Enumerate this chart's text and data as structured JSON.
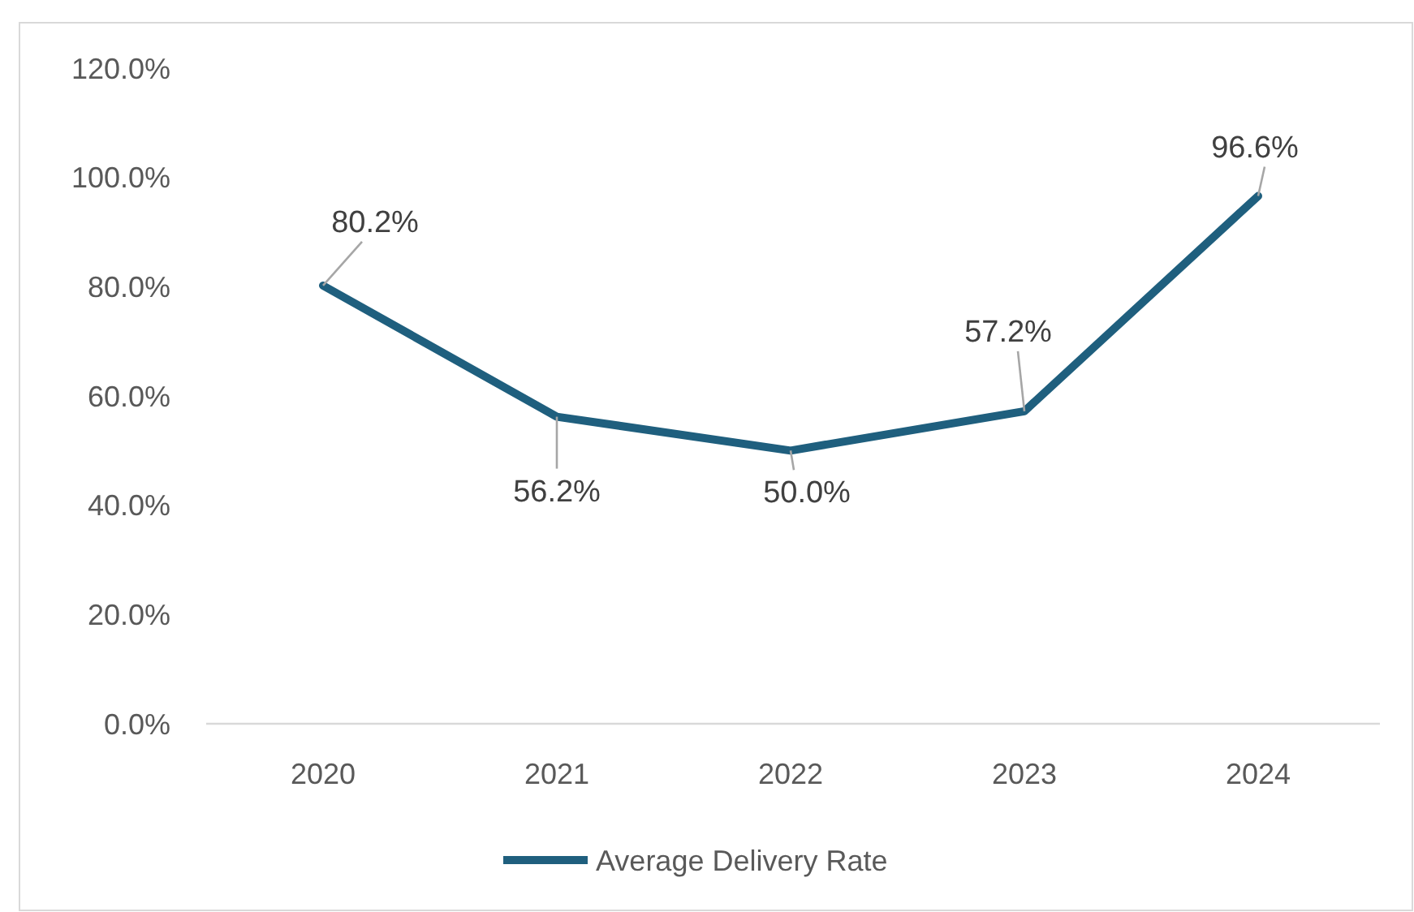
{
  "chart_data": {
    "type": "line",
    "categories": [
      "2020",
      "2021",
      "2022",
      "2023",
      "2024"
    ],
    "series": [
      {
        "name": "Average Delivery Rate",
        "color": "#1f5f7e",
        "values": [
          80.2,
          56.2,
          50.0,
          57.2,
          96.6
        ],
        "value_labels": [
          "80.2%",
          "56.2%",
          "50.0%",
          "57.2%",
          "96.6%"
        ]
      }
    ],
    "ylim": [
      0,
      120
    ],
    "yticks": [
      {
        "value": 0,
        "label": "0.0%"
      },
      {
        "value": 20,
        "label": "20.0%"
      },
      {
        "value": 40,
        "label": "40.0%"
      },
      {
        "value": 60,
        "label": "60.0%"
      },
      {
        "value": 80,
        "label": "80.0%"
      },
      {
        "value": 100,
        "label": "100.0%"
      },
      {
        "value": 120,
        "label": "120.0%"
      }
    ],
    "grid": false,
    "legend": "bottom",
    "marker": "none",
    "line_style": "solid"
  }
}
